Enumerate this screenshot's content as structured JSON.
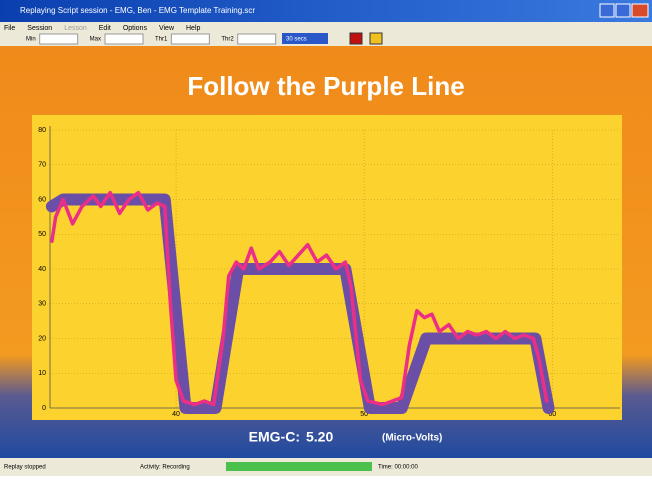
{
  "window": {
    "title": "Replaying Script session - EMG, Ben - EMG Template Training.scr"
  },
  "menu": [
    "File",
    "Session",
    "Lesson",
    "Edit",
    "Options",
    "View",
    "Help"
  ],
  "toolbar": {
    "fields": [
      "Min",
      "Max",
      "Thr1",
      "Thr2"
    ],
    "dropdown": "30 secs"
  },
  "chart_data": {
    "type": "line",
    "title": "Follow the Purple Line",
    "xlim": [
      33.3,
      63.6
    ],
    "ylim": [
      0,
      80
    ],
    "xticks": [
      40,
      50,
      60
    ],
    "yticks": [
      0,
      10,
      20,
      30,
      40,
      50,
      60,
      70,
      80
    ],
    "grid": true,
    "series": [
      {
        "color": "#6b4fa6",
        "x": [
          33.4,
          34,
          39.4,
          40.5,
          42.1,
          43.3,
          49,
          50.3,
          52,
          53.3,
          59.1,
          59.8
        ],
        "values": [
          58,
          60,
          60,
          0,
          0,
          40,
          40,
          0,
          0,
          20,
          20,
          0
        ]
      },
      {
        "color": "#ec2f86",
        "x": [
          33.4,
          33.6,
          34,
          34.5,
          35,
          35.6,
          36,
          36.5,
          37,
          37.5,
          38,
          38.5,
          39,
          39.4,
          39.7,
          40,
          40.4,
          41,
          41.5,
          42,
          42.5,
          42.8,
          43.2,
          43.6,
          44,
          44.4,
          45,
          45.5,
          46,
          46.5,
          47,
          47.5,
          48,
          48.5,
          49,
          49.3,
          49.8,
          50.2,
          51,
          51.5,
          52,
          52.4,
          52.8,
          53.2,
          53.6,
          54,
          54.5,
          55,
          55.5,
          56,
          56.5,
          57,
          57.5,
          58,
          58.5,
          59,
          59.3,
          59.7
        ],
        "values": [
          48,
          55,
          60,
          53,
          58,
          61,
          58,
          62,
          56,
          60,
          62,
          57,
          59,
          58,
          30,
          8,
          2,
          1,
          2,
          1,
          20,
          38,
          42,
          40,
          46,
          40,
          42,
          45,
          41,
          44,
          47,
          42,
          44,
          40,
          42,
          35,
          8,
          2,
          1,
          2,
          3,
          18,
          28,
          26,
          27,
          22,
          24,
          20,
          22,
          21,
          22,
          20,
          22,
          20,
          21,
          20,
          14,
          2
        ]
      }
    ]
  },
  "readout": {
    "label": "EMG-C:",
    "value": "5.20",
    "unit": "(Micro-Volts)"
  },
  "status": [
    "Replay stopped",
    "Activity: Recording",
    "Time: 00:00:00"
  ]
}
